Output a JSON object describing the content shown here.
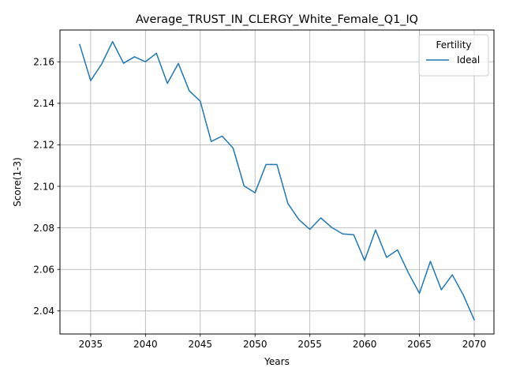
{
  "chart_data": {
    "type": "line",
    "title": "Average_TRUST_IN_CLERGY_White_Female_Q1_IQ",
    "xlabel": "Years",
    "ylabel": "Score(1-3)",
    "xlim": [
      2032.2,
      2071.8
    ],
    "ylim": [
      2.0289,
      2.1753
    ],
    "x_ticks": [
      2035,
      2040,
      2045,
      2050,
      2055,
      2060,
      2065,
      2070
    ],
    "y_ticks": [
      2.04,
      2.06,
      2.08,
      2.1,
      2.12,
      2.14,
      2.16
    ],
    "x_tick_labels": [
      "2035",
      "2040",
      "2045",
      "2050",
      "2055",
      "2060",
      "2065",
      "2070"
    ],
    "y_tick_labels": [
      "2.04",
      "2.06",
      "2.08",
      "2.10",
      "2.12",
      "2.14",
      "2.16"
    ],
    "grid": true,
    "legend": {
      "title": "Fertility",
      "placement": "top-right"
    },
    "series": [
      {
        "name": "Ideal",
        "color": "#1f77b4",
        "x": [
          2034,
          2035,
          2036,
          2037,
          2038,
          2039,
          2040,
          2041,
          2042,
          2043,
          2044,
          2045,
          2046,
          2047,
          2048,
          2049,
          2050,
          2051,
          2052,
          2053,
          2054,
          2055,
          2056,
          2057,
          2058,
          2059,
          2060,
          2061,
          2062,
          2063,
          2064,
          2065,
          2066,
          2067,
          2068,
          2069,
          2070
        ],
        "y": [
          2.1683,
          2.1509,
          2.1589,
          2.1697,
          2.1593,
          2.1624,
          2.16,
          2.1641,
          2.1496,
          2.1592,
          2.146,
          2.141,
          2.1216,
          2.1242,
          2.1184,
          2.1002,
          2.0969,
          2.1105,
          2.1105,
          2.0917,
          2.084,
          2.0793,
          2.0848,
          2.0802,
          2.0771,
          2.0767,
          2.0643,
          2.079,
          2.0658,
          2.0694,
          2.0583,
          2.0485,
          2.0639,
          2.0502,
          2.0574,
          2.0477,
          2.0357
        ]
      }
    ]
  }
}
